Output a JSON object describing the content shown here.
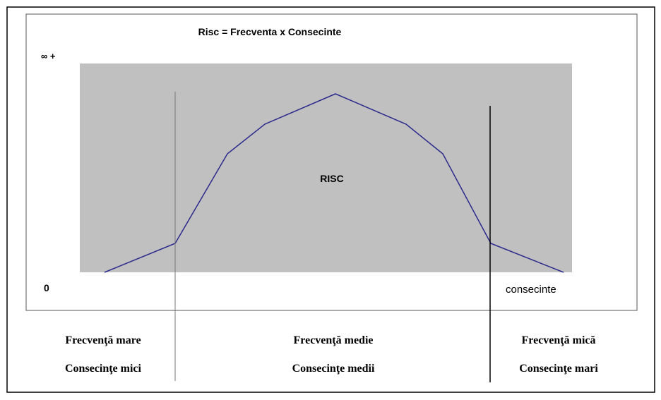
{
  "title": "Risc = Frecventa x Consecinte",
  "axis": {
    "y_top": "∞ +",
    "origin": "0",
    "x_label": "consecinte"
  },
  "area_label": "RISC",
  "zones": [
    {
      "frequency": "Frecvenţă mare",
      "consequence": "Consecinţe mici"
    },
    {
      "frequency": "Frecvenţă medie",
      "consequence": "Consecinţe medii"
    },
    {
      "frequency": "Frecvenţă mică",
      "consequence": "Consecinţe mari"
    }
  ]
}
